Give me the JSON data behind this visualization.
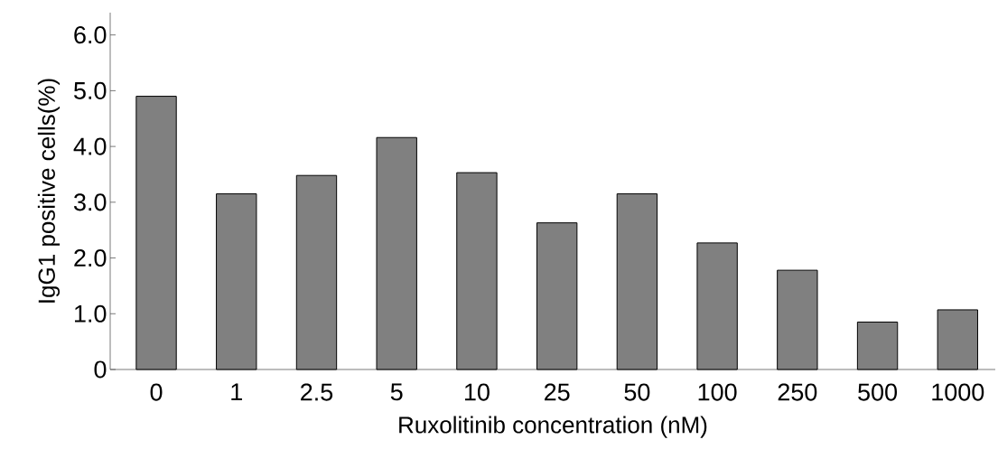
{
  "chart_data": {
    "type": "bar",
    "xlabel": "Ruxolitinib concentration (nM)",
    "ylabel": "IgG1 positive cells(%)",
    "categories": [
      "0",
      "1",
      "2.5",
      "5",
      "10",
      "25",
      "50",
      "100",
      "250",
      "500",
      "1000"
    ],
    "values": [
      4.9,
      3.15,
      3.48,
      4.16,
      3.53,
      2.63,
      3.15,
      2.27,
      1.78,
      0.85,
      1.07
    ],
    "color": "#808080",
    "ylim": [
      0,
      6.4
    ],
    "yticks": [
      0,
      {
        "value": 1,
        "label": "1.0"
      },
      {
        "value": 2,
        "label": "2.0"
      },
      {
        "value": 3,
        "label": "3.0"
      },
      {
        "value": 4,
        "label": "4.0"
      },
      {
        "value": 5,
        "label": "5.0"
      },
      {
        "value": 6,
        "label": "6.0"
      }
    ],
    "grid": false
  }
}
